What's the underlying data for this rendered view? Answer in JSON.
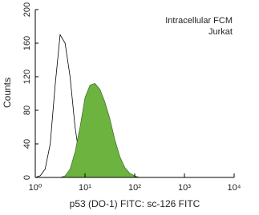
{
  "chart_data": {
    "type": "histogram",
    "annotations": [
      "Intracellular FCM",
      "Jurkat"
    ],
    "xlabel": "p53 (DO-1) FITC: sc-126 FITC",
    "ylabel": "Counts",
    "log_x": true,
    "xlim": [
      1,
      10000
    ],
    "xticks": [
      {
        "value": 1,
        "label": "10⁰"
      },
      {
        "value": 10,
        "label": "10¹"
      },
      {
        "value": 100,
        "label": "10²"
      },
      {
        "value": 1000,
        "label": "10³"
      },
      {
        "value": 10000,
        "label": "10⁴"
      }
    ],
    "ylim": [
      0,
      200
    ],
    "yticks": [
      0,
      40,
      80,
      120,
      160,
      200
    ],
    "x": [
      1,
      1.26,
      1.58,
      2,
      2.51,
      3.16,
      3.98,
      5.01,
      6.31,
      7.94,
      10,
      12.6,
      15.8,
      20,
      25.1,
      31.6,
      39.8,
      50.1,
      63.1,
      79.4,
      100,
      126,
      158
    ],
    "series": [
      {
        "color": "#000000",
        "filled": false,
        "values": [
          0,
          2,
          10,
          40,
          110,
          170,
          160,
          120,
          60,
          20,
          5,
          1,
          0,
          0,
          0,
          0,
          0,
          0,
          0,
          0,
          0,
          0,
          0
        ]
      },
      {
        "color": "#6db33f",
        "filled": true,
        "values": [
          0,
          0,
          0,
          0,
          0,
          0,
          2,
          10,
          30,
          60,
          95,
          110,
          112,
          105,
          90,
          70,
          45,
          25,
          12,
          5,
          2,
          0,
          0
        ]
      }
    ]
  }
}
